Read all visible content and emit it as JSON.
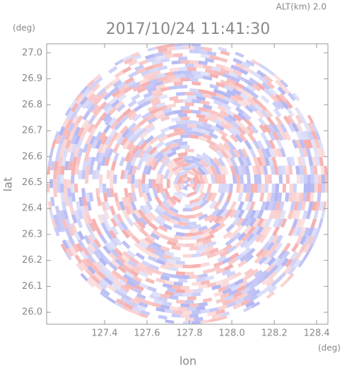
{
  "chart_data": {
    "type": "radar-ppi",
    "title": "2017/10/24 11:41:30",
    "annotation": "ALT(km) 2.0",
    "x_label": "lon",
    "y_label": "lat",
    "x_unit": "(deg)",
    "y_unit": "(deg)",
    "xlim": [
      127.127,
      128.453
    ],
    "xticks": [
      127.4,
      127.6,
      127.8,
      {
        "value": 128.0,
        "label": "128.0"
      },
      128.2,
      128.4
    ],
    "ylim": [
      25.954,
      27.035
    ],
    "yticks": [
      {
        "value": 26.0,
        "label": "26.0"
      },
      26.1,
      26.2,
      26.3,
      26.4,
      26.5,
      26.6,
      26.7,
      26.8,
      26.9,
      {
        "value": 27.0,
        "label": "27.0"
      }
    ],
    "colors": [
      "#f5a9a9",
      "#aeb2f2"
    ]
  }
}
